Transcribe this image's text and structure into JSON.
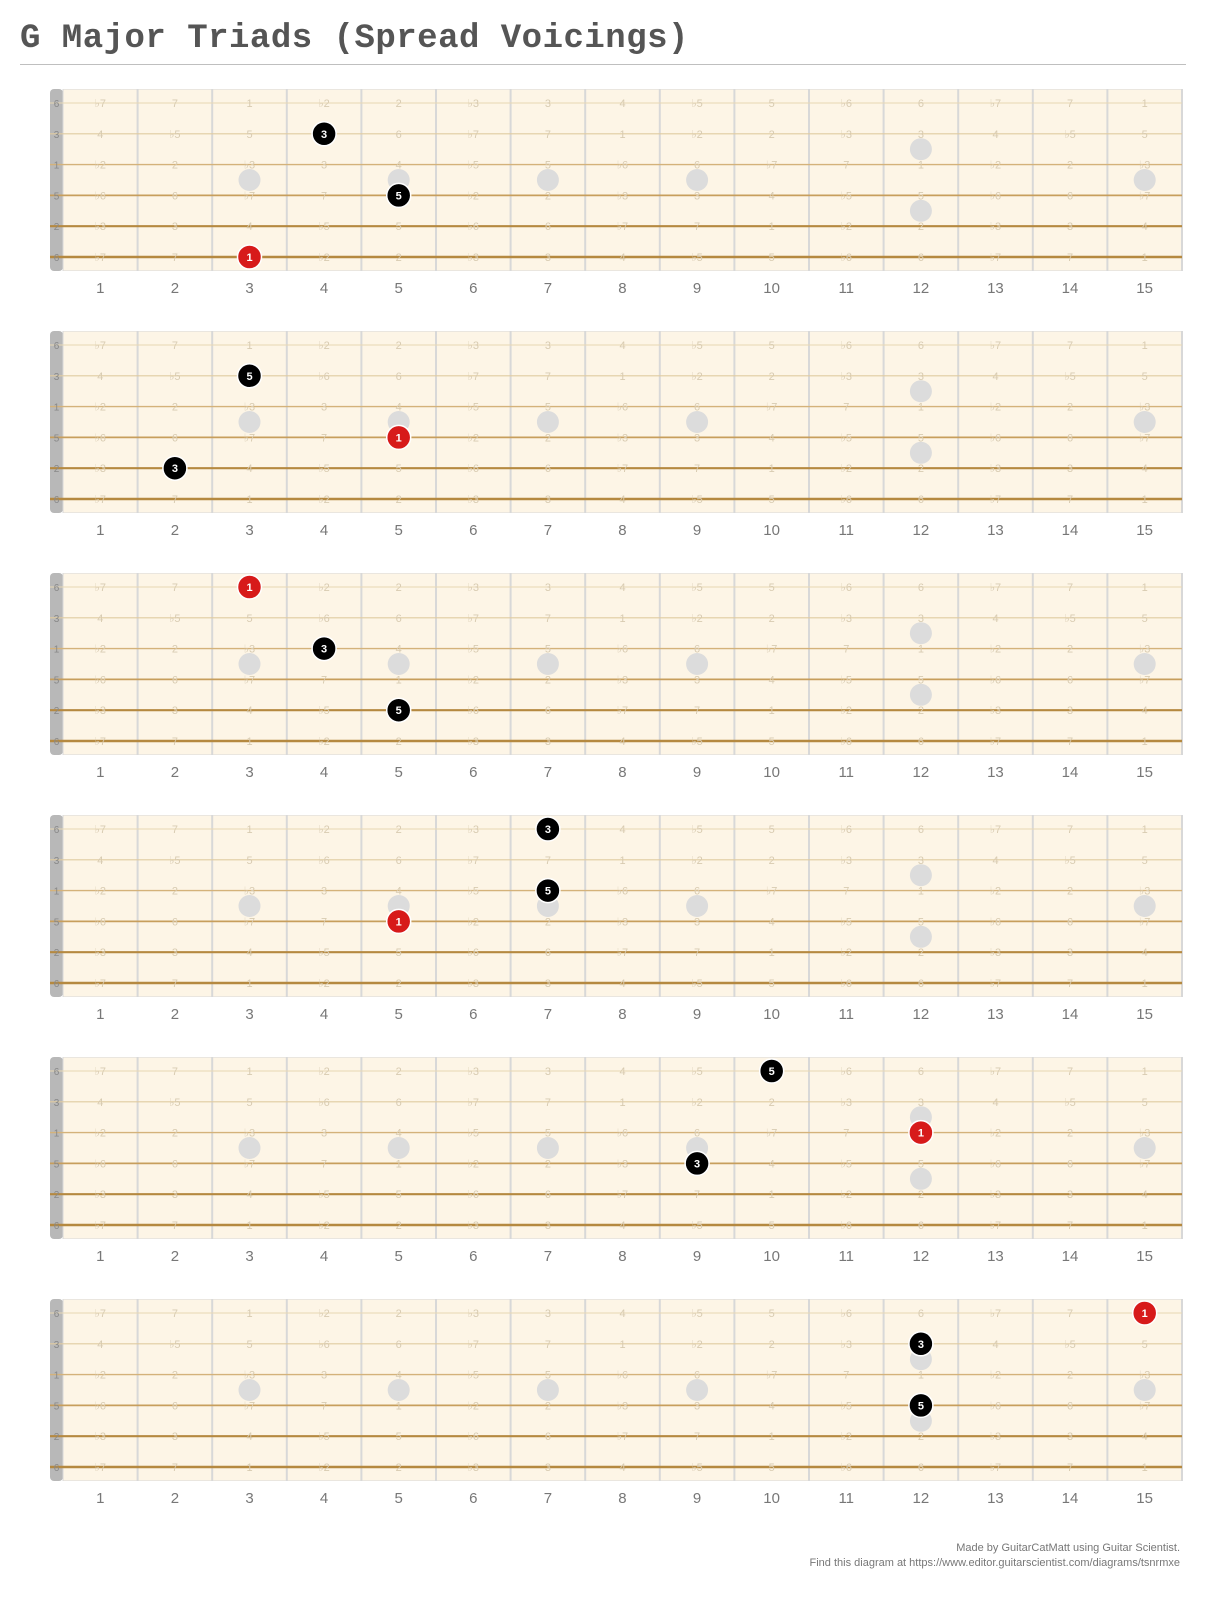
{
  "title": "G Major Triads (Spread Voicings)",
  "layout": {
    "fret_count": 15,
    "nut_width": 13,
    "left_margin": 30,
    "fret_width": 74.6,
    "board_width": 1120,
    "board_height": 182,
    "string_count": 6,
    "string_top_pad": 14,
    "string_spacing": 30.8,
    "inlay_radius": 11
  },
  "colors": {
    "background": "#fdf5e6",
    "string_light": "#e0cba0",
    "string_mid": "#d4b27a",
    "string_dark": "#b58940",
    "fret_line": "#d8d8d8",
    "nut": "#b8b8b8",
    "inlay": "#dcdcdc",
    "note_black": "#000000",
    "note_root": "#d71a1a",
    "note_text": "#ffffff",
    "ghost_text": "#d8cbb1",
    "fret_number": "#777777"
  },
  "string_colors_order": [
    "#e8d7b3",
    "#e0cba0",
    "#d4b27a",
    "#c79e5c",
    "#b58940",
    "#b58940"
  ],
  "string_thickness": [
    1.0,
    1.2,
    1.4,
    1.8,
    2.2,
    2.6
  ],
  "nut_labels": [
    "6",
    "3",
    "1",
    "5",
    "2",
    "6"
  ],
  "inlay_frets_single": [
    3,
    5,
    7,
    9,
    15
  ],
  "inlay_frets_double": [
    12
  ],
  "inlay_string_single": 2,
  "inlay_strings_double": [
    1,
    3
  ],
  "ghost_intervals": [
    [
      "♭7",
      "7",
      "1",
      "♭2",
      "2",
      "♭3",
      "3",
      "4",
      "♭5",
      "5",
      "♭6",
      "6",
      "♭7",
      "7",
      "1"
    ],
    [
      "4",
      "♭5",
      "5",
      "♭6",
      "6",
      "♭7",
      "7",
      "1",
      "♭2",
      "2",
      "♭3",
      "3",
      "4",
      "♭5",
      "5"
    ],
    [
      "♭2",
      "2",
      "♭3",
      "3",
      "4",
      "♭5",
      "5",
      "♭6",
      "6",
      "♭7",
      "7",
      "1",
      "♭2",
      "2",
      "♭3"
    ],
    [
      "♭6",
      "6",
      "♭7",
      "7",
      "1",
      "♭2",
      "2",
      "♭3",
      "3",
      "4",
      "♭5",
      "5",
      "♭6",
      "6",
      "♭7"
    ],
    [
      "♭3",
      "3",
      "4",
      "♭5",
      "5",
      "♭6",
      "6",
      "♭7",
      "7",
      "1",
      "♭2",
      "2",
      "♭3",
      "3",
      "4"
    ],
    [
      "♭7",
      "7",
      "1",
      "♭2",
      "2",
      "♭3",
      "3",
      "4",
      "♭5",
      "5",
      "♭6",
      "6",
      "♭7",
      "7",
      "1"
    ]
  ],
  "diagrams": [
    {
      "notes": [
        {
          "string": 5,
          "fret": 3,
          "label": "1",
          "root": true
        },
        {
          "string": 3,
          "fret": 5,
          "label": "5",
          "root": false
        },
        {
          "string": 1,
          "fret": 4,
          "label": "3",
          "root": false
        }
      ]
    },
    {
      "notes": [
        {
          "string": 4,
          "fret": 2,
          "label": "3",
          "root": false
        },
        {
          "string": 3,
          "fret": 5,
          "label": "1",
          "root": true
        },
        {
          "string": 1,
          "fret": 3,
          "label": "5",
          "root": false
        }
      ]
    },
    {
      "notes": [
        {
          "string": 0,
          "fret": 3,
          "label": "1",
          "root": true
        },
        {
          "string": 2,
          "fret": 4,
          "label": "3",
          "root": false
        },
        {
          "string": 4,
          "fret": 5,
          "label": "5",
          "root": false
        }
      ]
    },
    {
      "notes": [
        {
          "string": 3,
          "fret": 5,
          "label": "1",
          "root": true
        },
        {
          "string": 2,
          "fret": 7,
          "label": "5",
          "root": false
        },
        {
          "string": 0,
          "fret": 7,
          "label": "3",
          "root": false
        }
      ]
    },
    {
      "notes": [
        {
          "string": 3,
          "fret": 9,
          "label": "3",
          "root": false
        },
        {
          "string": 2,
          "fret": 12,
          "label": "1",
          "root": true
        },
        {
          "string": 0,
          "fret": 10,
          "label": "5",
          "root": false
        }
      ]
    },
    {
      "notes": [
        {
          "string": 0,
          "fret": 15,
          "label": "1",
          "root": true
        },
        {
          "string": 1,
          "fret": 12,
          "label": "3",
          "root": false
        },
        {
          "string": 3,
          "fret": 12,
          "label": "5",
          "root": false
        }
      ]
    }
  ],
  "credit_line1": "Made by GuitarCatMatt using Guitar Scientist.",
  "credit_line2": "Find this diagram at https://www.editor.guitarscientist.com/diagrams/tsnrmxe"
}
